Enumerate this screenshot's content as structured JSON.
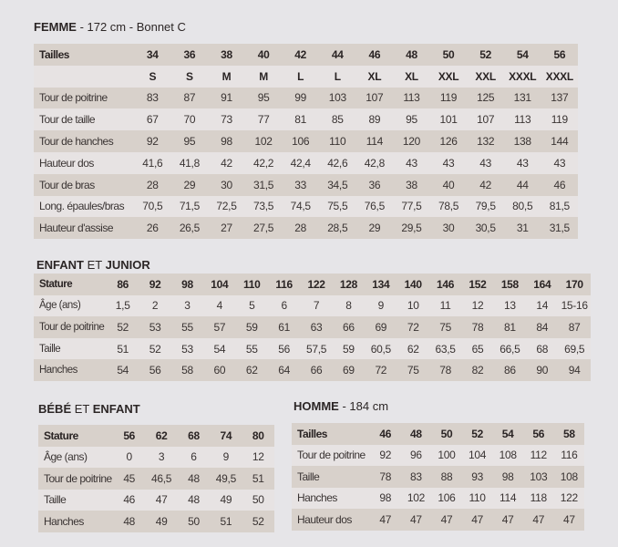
{
  "femme": {
    "title_bold": "FEMME",
    "title_rest": " - 172 cm - Bonnet C",
    "header": {
      "label": "Tailles",
      "values": [
        "34",
        "36",
        "38",
        "40",
        "42",
        "44",
        "46",
        "48",
        "50",
        "52",
        "54",
        "56"
      ]
    },
    "sub": {
      "label": "",
      "values": [
        "S",
        "S",
        "M",
        "M",
        "L",
        "L",
        "XL",
        "XL",
        "XXL",
        "XXL",
        "XXXL",
        "XXXL"
      ]
    },
    "rows": [
      {
        "label": "Tour de poitrine",
        "values": [
          "83",
          "87",
          "91",
          "95",
          "99",
          "103",
          "107",
          "113",
          "119",
          "125",
          "131",
          "137"
        ]
      },
      {
        "label": "Tour de taille",
        "values": [
          "67",
          "70",
          "73",
          "77",
          "81",
          "85",
          "89",
          "95",
          "101",
          "107",
          "113",
          "119"
        ]
      },
      {
        "label": "Tour de hanches",
        "values": [
          "92",
          "95",
          "98",
          "102",
          "106",
          "110",
          "114",
          "120",
          "126",
          "132",
          "138",
          "144"
        ]
      },
      {
        "label": "Hauteur dos",
        "values": [
          "41,6",
          "41,8",
          "42",
          "42,2",
          "42,4",
          "42,6",
          "42,8",
          "43",
          "43",
          "43",
          "43",
          "43"
        ]
      },
      {
        "label": "Tour de bras",
        "values": [
          "28",
          "29",
          "30",
          "31,5",
          "33",
          "34,5",
          "36",
          "38",
          "40",
          "42",
          "44",
          "46"
        ]
      },
      {
        "label": "Long. épaules/bras",
        "values": [
          "70,5",
          "71,5",
          "72,5",
          "73,5",
          "74,5",
          "75,5",
          "76,5",
          "77,5",
          "78,5",
          "79,5",
          "80,5",
          "81,5"
        ]
      },
      {
        "label": "Hauteur d'assise",
        "values": [
          "26",
          "26,5",
          "27",
          "27,5",
          "28",
          "28,5",
          "29",
          "29,5",
          "30",
          "30,5",
          "31",
          "31,5"
        ]
      }
    ]
  },
  "enfant": {
    "title_bold": "ENFANT",
    "title_mid": " ET ",
    "title_bold2": "JUNIOR",
    "header": {
      "label": "Stature",
      "values": [
        "86",
        "92",
        "98",
        "104",
        "110",
        "116",
        "122",
        "128",
        "134",
        "140",
        "146",
        "152",
        "158",
        "164",
        "170"
      ]
    },
    "rows": [
      {
        "label": "Âge (ans)",
        "values": [
          "1,5",
          "2",
          "3",
          "4",
          "5",
          "6",
          "7",
          "8",
          "9",
          "10",
          "11",
          "12",
          "13",
          "14",
          "15-16"
        ]
      },
      {
        "label": "Tour de poitrine",
        "values": [
          "52",
          "53",
          "55",
          "57",
          "59",
          "61",
          "63",
          "66",
          "69",
          "72",
          "75",
          "78",
          "81",
          "84",
          "87"
        ]
      },
      {
        "label": "Taille",
        "values": [
          "51",
          "52",
          "53",
          "54",
          "55",
          "56",
          "57,5",
          "59",
          "60,5",
          "62",
          "63,5",
          "65",
          "66,5",
          "68",
          "69,5"
        ]
      },
      {
        "label": "Hanches",
        "values": [
          "54",
          "56",
          "58",
          "60",
          "62",
          "64",
          "66",
          "69",
          "72",
          "75",
          "78",
          "82",
          "86",
          "90",
          "94"
        ]
      }
    ]
  },
  "bebe": {
    "title_bold": "BÉBÉ",
    "title_mid": " ET ",
    "title_bold2": "ENFANT",
    "header": {
      "label": "Stature",
      "values": [
        "56",
        "62",
        "68",
        "74",
        "80"
      ]
    },
    "rows": [
      {
        "label": "Âge (ans)",
        "values": [
          "0",
          "3",
          "6",
          "9",
          "12"
        ]
      },
      {
        "label": "Tour de poitrine",
        "values": [
          "45",
          "46,5",
          "48",
          "49,5",
          "51"
        ]
      },
      {
        "label": "Taille",
        "values": [
          "46",
          "47",
          "48",
          "49",
          "50"
        ]
      },
      {
        "label": "Hanches",
        "values": [
          "48",
          "49",
          "50",
          "51",
          "52"
        ]
      }
    ]
  },
  "homme": {
    "title_bold": "HOMME",
    "title_rest": " - 184 cm",
    "header": {
      "label": "Tailles",
      "values": [
        "46",
        "48",
        "50",
        "52",
        "54",
        "56",
        "58"
      ]
    },
    "rows": [
      {
        "label": "Tour de poitrine",
        "values": [
          "92",
          "96",
          "100",
          "104",
          "108",
          "112",
          "116"
        ]
      },
      {
        "label": "Taille",
        "values": [
          "78",
          "83",
          "88",
          "93",
          "98",
          "103",
          "108"
        ]
      },
      {
        "label": "Hanches",
        "values": [
          "98",
          "102",
          "106",
          "110",
          "114",
          "118",
          "122"
        ]
      },
      {
        "label": "Hauteur dos",
        "values": [
          "47",
          "47",
          "47",
          "47",
          "47",
          "47",
          "47"
        ]
      }
    ]
  }
}
